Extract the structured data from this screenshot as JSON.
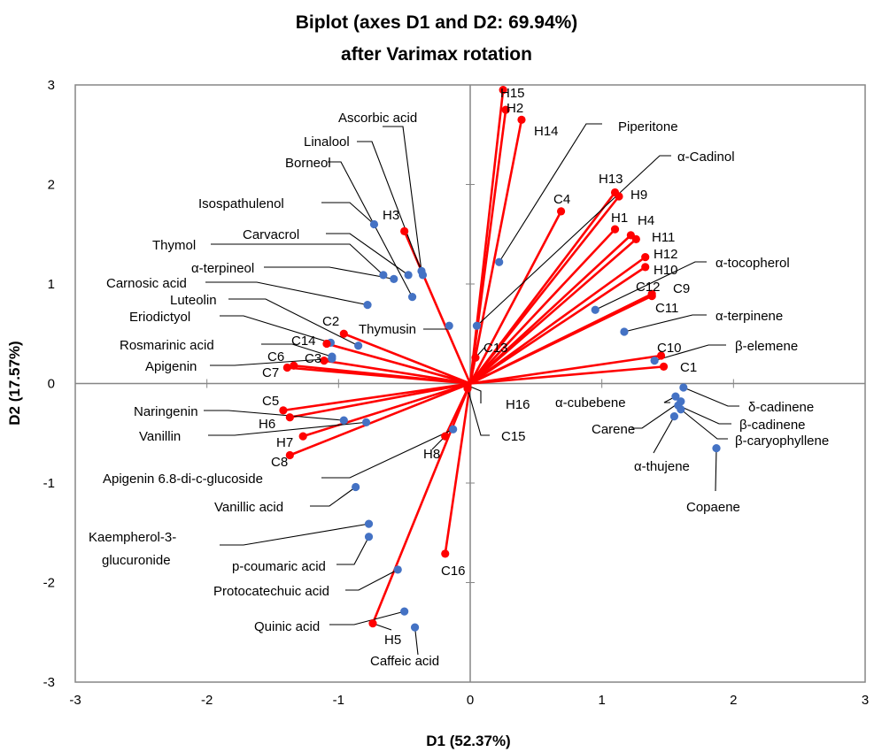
{
  "chart_data": {
    "type": "scatter",
    "title_lines": [
      "Biplot (axes D1 and D2: 69.94%)",
      "after Varimax rotation"
    ],
    "xlabel": "D1 (52.37%)",
    "ylabel": "D2 (17.57%)",
    "xlim": [
      -3,
      3
    ],
    "ylim": [
      -3,
      3
    ],
    "xticks": [
      "-3",
      "-2",
      "-1",
      "0",
      "1",
      "2",
      "3"
    ],
    "yticks": [
      "-3",
      "-2",
      "-1",
      "0",
      "1",
      "2",
      "3"
    ],
    "colors": {
      "samples": "#ff0000",
      "variables": "#4472c4"
    },
    "series": [
      {
        "points": [
          {
            "name": "H15",
            "x": 0.25,
            "y": 2.95
          },
          {
            "name": "H2",
            "x": 0.27,
            "y": 2.75
          },
          {
            "name": "H14",
            "x": 0.39,
            "y": 2.65
          },
          {
            "name": "H13",
            "x": 1.1,
            "y": 1.92
          },
          {
            "name": "H9",
            "x": 1.13,
            "y": 1.88
          },
          {
            "name": "C4",
            "x": 0.69,
            "y": 1.73
          },
          {
            "name": "H1",
            "x": 1.1,
            "y": 1.55
          },
          {
            "name": "H4",
            "x": 1.22,
            "y": 1.49
          },
          {
            "name": "H11",
            "x": 1.26,
            "y": 1.45
          },
          {
            "name": "H12",
            "x": 1.33,
            "y": 1.27
          },
          {
            "name": "H10",
            "x": 1.33,
            "y": 1.17
          },
          {
            "name": "C9",
            "x": 1.38,
            "y": 0.9
          },
          {
            "name": "C12",
            "x": 1.38,
            "y": 0.88
          },
          {
            "name": "C11",
            "x": 1.38,
            "y": 0.88
          },
          {
            "name": "C10",
            "x": 1.45,
            "y": 0.28
          },
          {
            "name": "C1",
            "x": 1.47,
            "y": 0.17
          },
          {
            "name": "H3",
            "x": -0.5,
            "y": 1.53
          },
          {
            "name": "C2",
            "x": -0.96,
            "y": 0.5
          },
          {
            "name": "C14",
            "x": -1.09,
            "y": 0.4
          },
          {
            "name": "C3",
            "x": -1.11,
            "y": 0.23
          },
          {
            "name": "C6",
            "x": -1.34,
            "y": 0.18
          },
          {
            "name": "C7",
            "x": -1.39,
            "y": 0.16
          },
          {
            "name": "C13",
            "x": 0.04,
            "y": 0.26
          },
          {
            "name": "C5",
            "x": -1.42,
            "y": -0.27
          },
          {
            "name": "H6",
            "x": -1.37,
            "y": -0.34
          },
          {
            "name": "H7",
            "x": -1.27,
            "y": -0.53
          },
          {
            "name": "C8",
            "x": -1.37,
            "y": -0.72
          },
          {
            "name": "H16",
            "x": -0.02,
            "y": -0.02
          },
          {
            "name": "C15",
            "x": -0.02,
            "y": -0.05
          },
          {
            "name": "H8",
            "x": -0.19,
            "y": -0.53
          },
          {
            "name": "C16",
            "x": -0.19,
            "y": -1.71
          },
          {
            "name": "H5",
            "x": -0.74,
            "y": -2.41
          }
        ]
      },
      {
        "points": [
          {
            "name": "Ascorbic acid",
            "x": -0.37,
            "y": 1.13
          },
          {
            "name": "Linalool",
            "x": -0.36,
            "y": 1.09
          },
          {
            "name": "Borneol",
            "x": -0.44,
            "y": 0.87
          },
          {
            "name": "Isospathulenol",
            "x": -0.73,
            "y": 1.6
          },
          {
            "name": "Carvacrol",
            "x": -0.47,
            "y": 1.09
          },
          {
            "name": "Thymol",
            "x": -0.66,
            "y": 1.09
          },
          {
            "name": "α-terpineol",
            "x": -0.58,
            "y": 1.05
          },
          {
            "name": "Carnosic acid",
            "x": -0.78,
            "y": 0.79
          },
          {
            "name": "Luteolin",
            "x": -0.85,
            "y": 0.38
          },
          {
            "name": "Eriodictyol",
            "x": -1.06,
            "y": 0.41
          },
          {
            "name": "Thymusin",
            "x": -0.16,
            "y": 0.58
          },
          {
            "name": "Rosmarinic acid",
            "x": -1.05,
            "y": 0.27
          },
          {
            "name": "Apigenin",
            "x": -1.05,
            "y": 0.25
          },
          {
            "name": "Piperitone",
            "x": 0.22,
            "y": 1.22
          },
          {
            "name": "α-Cadinol",
            "x": 0.05,
            "y": 0.58
          },
          {
            "name": "α-tocopherol",
            "x": 0.95,
            "y": 0.74
          },
          {
            "name": "α-terpinene",
            "x": 1.17,
            "y": 0.52
          },
          {
            "name": "β-elemene",
            "x": 1.4,
            "y": 0.23
          },
          {
            "name": "δ-cadinene",
            "x": 1.62,
            "y": -0.04
          },
          {
            "name": "α-cubebene",
            "x": 1.56,
            "y": -0.13
          },
          {
            "name": "β-cadinene",
            "x": 1.58,
            "y": -0.22
          },
          {
            "name": "Carene",
            "x": 1.6,
            "y": -0.18
          },
          {
            "name": "β-caryophyllene",
            "x": 1.6,
            "y": -0.26
          },
          {
            "name": "α-thujene",
            "x": 1.55,
            "y": -0.33
          },
          {
            "name": "Copaene",
            "x": 1.87,
            "y": -0.65
          },
          {
            "name": "Naringenin",
            "x": -0.96,
            "y": -0.37
          },
          {
            "name": "Vanillin",
            "x": -0.79,
            "y": -0.39
          },
          {
            "name": "Apigenin 6.8-di-c-glucoside",
            "x": -0.13,
            "y": -0.46
          },
          {
            "name": "Vanillic acid",
            "x": -0.87,
            "y": -1.04
          },
          {
            "name": "Kaempherol-3-glucuronide",
            "x": -0.77,
            "y": -1.41
          },
          {
            "name": "p-coumaric acid",
            "x": -0.77,
            "y": -1.54
          },
          {
            "name": "Protocatechuic acid",
            "x": -0.55,
            "y": -1.87
          },
          {
            "name": "Quinic acid",
            "x": -0.5,
            "y": -2.29
          },
          {
            "name": "Caffeic acid",
            "x": -0.42,
            "y": -2.45
          }
        ]
      }
    ]
  },
  "labels": {
    "H15": "H15",
    "H2": "H2",
    "H14": "H14",
    "H13": "H13",
    "H9": "H9",
    "C4": "C4",
    "H1": "H1",
    "H4": "H4",
    "H11": "H11",
    "H12": "H12",
    "H10": "H10",
    "C9": "C9",
    "C12": "C12",
    "C11": "C11",
    "C10": "C10",
    "C1": "C1",
    "H3": "H3",
    "C2": "C2",
    "C14": "C14",
    "C3": "C3",
    "C6": "C6",
    "C7": "C7",
    "C13": "C13",
    "C5": "C5",
    "H6": "H6",
    "H7": "H7",
    "C8": "C8",
    "H16": "H16",
    "C15": "C15",
    "H8": "H8",
    "C16": "C16",
    "H5": "H5",
    "ascorbic": "Ascorbic acid",
    "linalool": "Linalool",
    "borneol": "Borneol",
    "isospathulenol": "Isospathulenol",
    "carvacrol": "Carvacrol",
    "thymol": "Thymol",
    "aterpineol": "α-terpineol",
    "carnosic": "Carnosic acid",
    "luteolin": "Luteolin",
    "eriodictyol": "Eriodictyol",
    "thymusin": "Thymusin",
    "rosmarinic": "Rosmarinic acid",
    "apigenin": "Apigenin",
    "piperitone": "Piperitone",
    "acadinol": "α-Cadinol",
    "atocopherol": "α-tocopherol",
    "aterpinene": "α-terpinene",
    "belemene": "β-elemene",
    "dcadinene": "δ-cadinene",
    "acubebene": "α-cubebene",
    "bcadinene": "β-cadinene",
    "carene": "Carene",
    "bcaryophyllene": "β-caryophyllene",
    "athujene": "α-thujene",
    "copaene": "Copaene",
    "naringenin": "Naringenin",
    "vanillin": "Vanillin",
    "apigenin68": "Apigenin 6.8-di-c-glucoside",
    "vanillic": "Vanillic acid",
    "kaempherol1": "Kaempherol-3-",
    "kaempherol2": "glucuronide",
    "pcoumaric": "p-coumaric acid",
    "protocatechuic": "Protocatechuic acid",
    "quinic": "Quinic acid",
    "caffeic": "Caffeic acid"
  }
}
